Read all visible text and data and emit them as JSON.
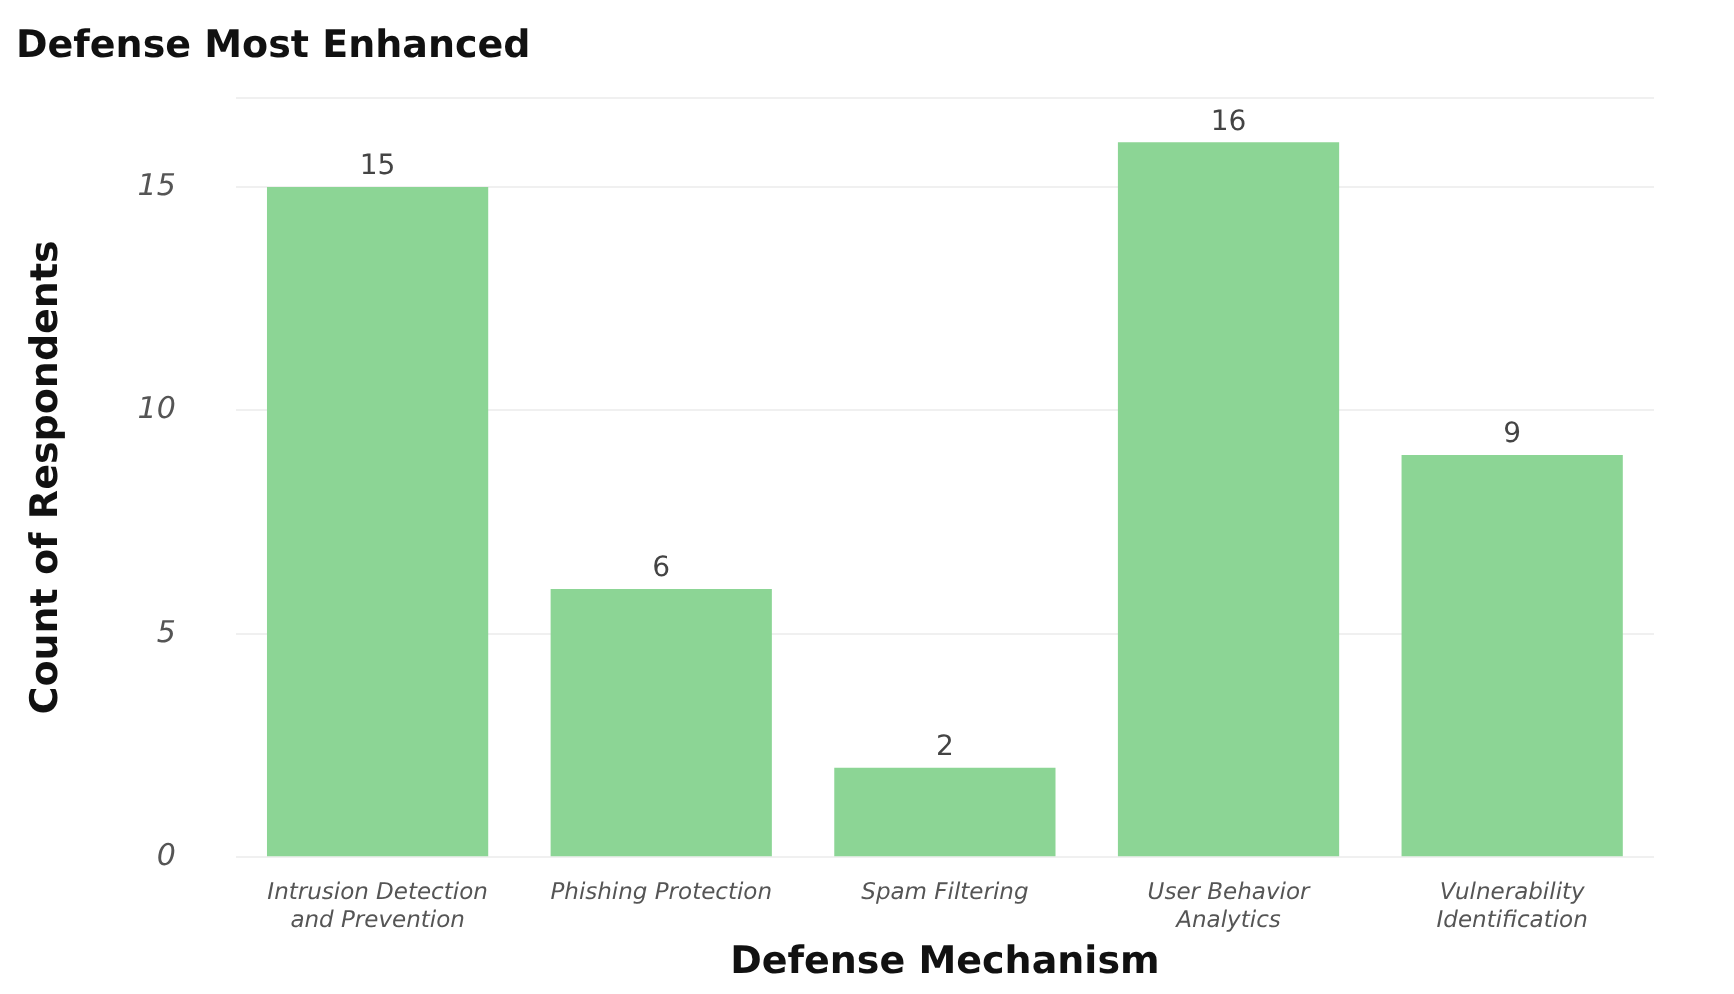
{
  "chart_data": {
    "type": "bar",
    "title": "Defense Most Enhanced",
    "xlabel": "Defense Mechanism",
    "ylabel": "Count of Respondents",
    "categories": [
      "Intrusion Detection and Prevention",
      "Phishing Protection",
      "Spam Filtering",
      "User Behavior Analytics",
      "Vulnerability Identification"
    ],
    "values": [
      15,
      6,
      2,
      16,
      9
    ],
    "color": "#8cd595",
    "data_labels": true,
    "ylim": [
      0,
      17
    ],
    "yticks": [
      0,
      5,
      10,
      15,
      {
        "value": 17,
        "label": null
      }
    ],
    "grid": "y",
    "legend": false
  }
}
